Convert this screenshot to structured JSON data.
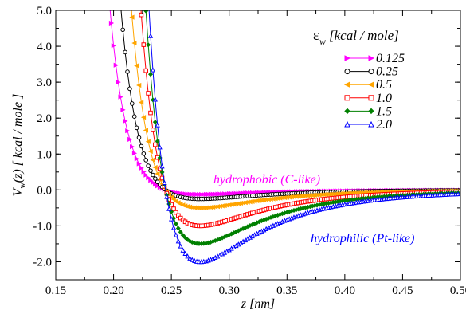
{
  "chart_data": {
    "type": "line",
    "xlabel": "z [nm]",
    "ylabel": "V_w(z) [ kcal / mole ]",
    "xlim": [
      0.15,
      0.5
    ],
    "ylim": [
      -2.5,
      5.0
    ],
    "x_ticks": [
      "0.15",
      "0.20",
      "0.25",
      "0.30",
      "0.35",
      "0.40",
      "0.45",
      "0.50"
    ],
    "y_ticks": [
      "-2.0",
      "-1.0",
      "0.0",
      "1.0",
      "2.0",
      "3.0",
      "4.0",
      "5.0"
    ],
    "grid": false,
    "legend": {
      "title_symbol": "ε",
      "title_subscript": "w",
      "title_unit": "[kcal / mole]",
      "placement": "top-right"
    },
    "potential_form": {
      "description": "curves follow V(z) = eps * [ (sigma/z)^12 - 2 (sigma/z)^6 ] with minimum at z0",
      "z0_nm": 0.275,
      "x_start": 0.16,
      "x_end": 0.5,
      "x_step": 0.002
    },
    "series": [
      {
        "name": "0.125",
        "epsilon": 0.125,
        "min_value": -0.125,
        "color": "#ff00ff",
        "marker": "triangle-right-filled"
      },
      {
        "name": "0.25",
        "epsilon": 0.25,
        "min_value": -0.25,
        "color": "#000000",
        "marker": "circle-open"
      },
      {
        "name": "0.5",
        "epsilon": 0.5,
        "min_value": -0.5,
        "color": "#ffa500",
        "marker": "triangle-left-filled"
      },
      {
        "name": "1.0",
        "epsilon": 1.0,
        "min_value": -1.0,
        "color": "#ff0000",
        "marker": "square-open"
      },
      {
        "name": "1.5",
        "epsilon": 1.5,
        "min_value": -1.5,
        "color": "#008000",
        "marker": "diamond-filled"
      },
      {
        "name": "2.0",
        "epsilon": 2.0,
        "min_value": -2.0,
        "color": "#0000ff",
        "marker": "triangle-up-open"
      }
    ],
    "annotations": [
      {
        "text": "hydrophobic (C-like)",
        "color": "#ff00ff"
      },
      {
        "text": "hydrophilic (Pt-like)",
        "color": "#0000ff"
      }
    ]
  }
}
